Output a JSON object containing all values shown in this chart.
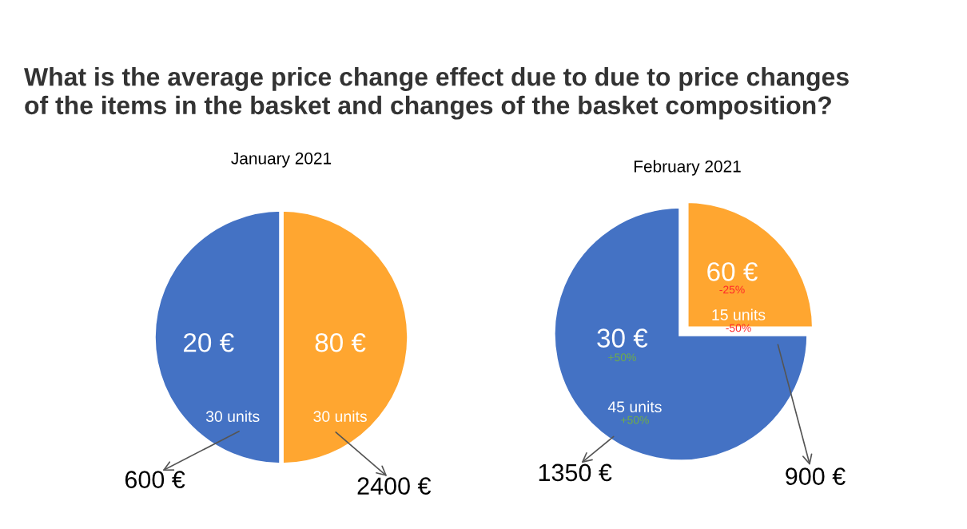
{
  "chart_data": [
    {
      "type": "pie",
      "title": "What is the average price change effect due to due to price changes\nof the items in the basket and changes of the basket composition?",
      "subtitle": "January 2021",
      "categories": [
        null,
        null
      ],
      "values": [
        50,
        50
      ],
      "colors": [
        "#ffa630",
        "#4472c4"
      ],
      "annotations": [
        "80 €",
        "30 units",
        "2400 €",
        "20 €",
        "30 units",
        "600 €"
      ]
    },
    {
      "type": "pie",
      "title": "February 2021",
      "categories": [
        null,
        null
      ],
      "values": [
        25,
        75
      ],
      "colors": [
        "#ffa630",
        "#4472c4"
      ],
      "annotations": [
        "60 €",
        "-25%",
        "15 units",
        "-50%",
        "900 €",
        "30 €",
        "+50%",
        "45 units",
        "+50%",
        "1350 €"
      ]
    }
  ]
}
